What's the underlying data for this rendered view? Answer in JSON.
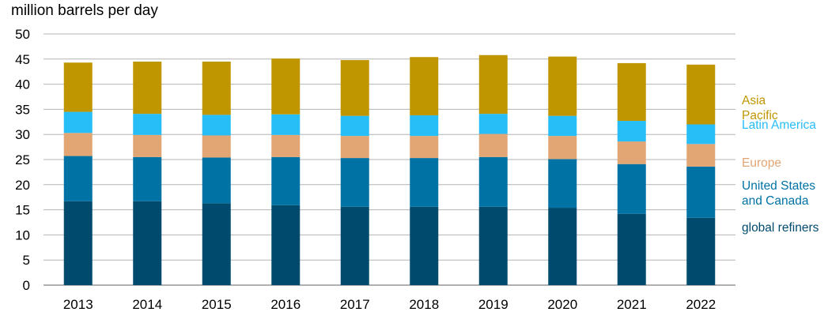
{
  "chart_data": {
    "type": "bar",
    "stacked": true,
    "ylabel": "million barrels per day",
    "ylim": [
      0,
      50
    ],
    "yticks": [
      0,
      5,
      10,
      15,
      20,
      25,
      30,
      35,
      40,
      45,
      50
    ],
    "grid": true,
    "legend_position": "right",
    "categories": [
      "2013",
      "2014",
      "2015",
      "2016",
      "2017",
      "2018",
      "2019",
      "2020",
      "2021",
      "2022"
    ],
    "series": [
      {
        "name": "global refiners",
        "color": "#004A6E",
        "values": [
          16.7,
          16.7,
          16.3,
          15.9,
          15.6,
          15.6,
          15.6,
          15.4,
          14.2,
          13.4
        ]
      },
      {
        "name": "United States and Canada",
        "color": "#0072A3",
        "values": [
          9.0,
          8.8,
          9.1,
          9.6,
          9.7,
          9.7,
          9.9,
          9.7,
          9.9,
          10.2
        ]
      },
      {
        "name": "Europe",
        "color": "#E2A574",
        "values": [
          4.6,
          4.4,
          4.4,
          4.4,
          4.4,
          4.4,
          4.6,
          4.6,
          4.5,
          4.5
        ]
      },
      {
        "name": "Latin America",
        "color": "#27BDF6",
        "values": [
          4.2,
          4.2,
          4.1,
          4.1,
          4.0,
          4.1,
          4.0,
          4.0,
          4.1,
          3.9
        ]
      },
      {
        "name": "Asia Pacific",
        "color": "#BF9600",
        "values": [
          9.8,
          10.4,
          10.6,
          11.1,
          11.1,
          11.6,
          11.7,
          11.8,
          11.5,
          11.9
        ]
      }
    ]
  }
}
